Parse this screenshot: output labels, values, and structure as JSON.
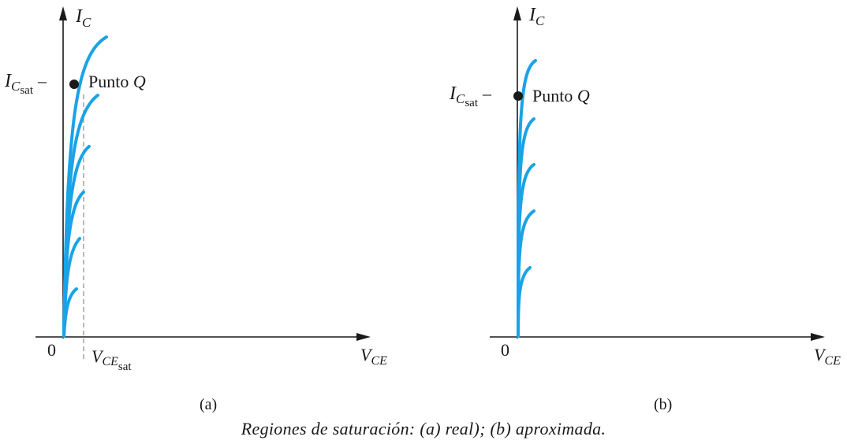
{
  "figure": {
    "caption": "Regiones de saturación: (a) real); (b) aproximada.",
    "colors": {
      "curve": "#1aa3e6",
      "axis": "#1a1a1a",
      "dashed": "#8a8a8a",
      "point": "#1a1a1a"
    },
    "panel_a": {
      "label": "(a)",
      "origin_label": "0",
      "y_axis": {
        "symbol": "I",
        "subscript": "C"
      },
      "x_axis": {
        "symbol": "V",
        "subscript": "CE"
      },
      "ic_sat": {
        "symbol": "I",
        "subscript": "C",
        "subsubscript": "sat",
        "dash": "–"
      },
      "vce_sat": {
        "symbol": "V",
        "subscript": "CE",
        "subsubscript": "sat"
      },
      "q_point": {
        "text": "Punto ",
        "symbol": "Q"
      }
    },
    "panel_b": {
      "label": "(b)",
      "origin_label": "0",
      "y_axis": {
        "symbol": "I",
        "subscript": "C"
      },
      "x_axis": {
        "symbol": "V",
        "subscript": "CE"
      },
      "ic_sat": {
        "symbol": "I",
        "subscript": "C",
        "subsubscript": "sat",
        "dash": "–"
      },
      "q_point": {
        "text": "Punto ",
        "symbol": "Q"
      }
    }
  }
}
